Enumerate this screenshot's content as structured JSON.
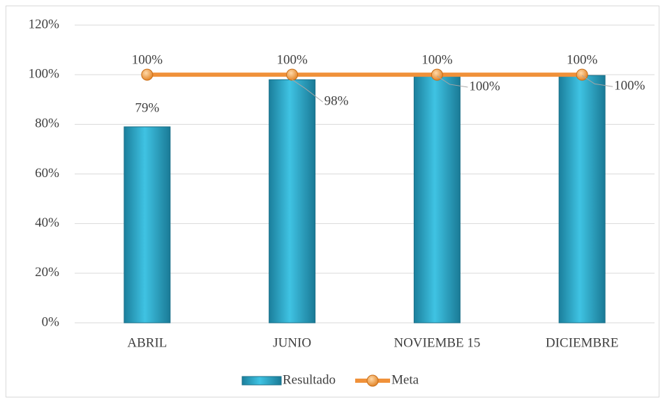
{
  "chart_data": {
    "type": "combo",
    "categories": [
      "ABRIL",
      "JUNIO",
      "NOVIEMBE 15",
      "DICIEMBRE"
    ],
    "series": [
      {
        "name": "Resultado",
        "type": "bar",
        "color": "#2aa7c9",
        "values": [
          79,
          98,
          99.5,
          99.7
        ],
        "value_labels": [
          "79%",
          "98%",
          "100%",
          "100%"
        ]
      },
      {
        "name": "Meta",
        "type": "line",
        "color": "#f0913a",
        "values": [
          100,
          100,
          100,
          100
        ],
        "value_labels": [
          "100%",
          "100%",
          "100%",
          "100%"
        ]
      }
    ],
    "ylim": [
      0,
      120
    ],
    "yticks": [
      {
        "value": 0,
        "label": "0%"
      },
      {
        "value": 20,
        "label": "20%"
      },
      {
        "value": 40,
        "label": "40%"
      },
      {
        "value": 60,
        "label": "60%"
      },
      {
        "value": 80,
        "label": "80%"
      },
      {
        "value": 100,
        "label": "100%"
      },
      {
        "value": 120,
        "label": "120%"
      }
    ],
    "grid": true,
    "legend": "bottom"
  }
}
